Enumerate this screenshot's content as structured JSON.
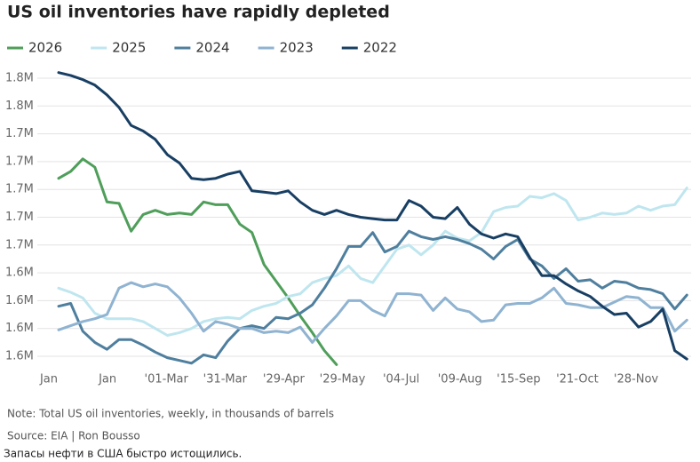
{
  "chart_data": {
    "type": "line",
    "title": "US oil inventories have rapidly depleted",
    "note": "Note: Total US oil inventories, weekly, in thousands of barrels",
    "source": "Source: EIA | Ron Bousso",
    "caption": "Запасы нефти в США быстро истощились.",
    "categories": [
      "Jan",
      null,
      null,
      null,
      null,
      "Jan",
      null,
      null,
      null,
      null,
      "'01-Mar",
      null,
      null,
      null,
      null,
      "'31-Mar",
      null,
      null,
      null,
      null,
      "'29-Apr",
      null,
      null,
      null,
      null,
      "'29-May",
      null,
      null,
      null,
      null,
      "'04-Jul",
      null,
      null,
      null,
      null,
      "'09-Aug",
      null,
      null,
      null,
      null,
      "'15-Sep",
      null,
      null,
      null,
      null,
      "'21-Oct",
      null,
      null,
      null,
      null,
      "'28-Nov",
      null,
      null
    ],
    "ylim": [
      1.57,
      1.79
    ],
    "yticks": [
      {
        "value": 1.58,
        "label": "1.6M"
      },
      {
        "value": 1.6,
        "label": "1.6M"
      },
      {
        "value": 1.62,
        "label": "1.6M"
      },
      {
        "value": 1.64,
        "label": "1.6M"
      },
      {
        "value": 1.66,
        "label": "1.7M"
      },
      {
        "value": 1.68,
        "label": "1.7M"
      },
      {
        "value": 1.7,
        "label": "1.7M"
      },
      {
        "value": 1.72,
        "label": "1.7M"
      },
      {
        "value": 1.74,
        "label": "1.7M"
      },
      {
        "value": 1.76,
        "label": "1.8M"
      },
      {
        "value": 1.78,
        "label": "1.8M"
      }
    ],
    "grid": true,
    "legend": "top",
    "series": [
      {
        "name": "2026",
        "color": "#4f9e5a",
        "values": [
          1.708,
          1.713,
          1.722,
          1.716,
          1.691,
          1.69,
          1.67,
          1.682,
          1.685,
          1.682,
          1.683,
          1.682,
          1.691,
          1.689,
          1.689,
          1.675,
          1.669,
          1.646,
          1.634,
          1.622,
          1.609,
          1.597,
          1.584,
          1.574,
          null,
          null,
          null,
          null,
          null,
          null,
          null,
          null,
          null,
          null,
          null,
          null,
          null,
          null,
          null,
          null,
          null,
          null,
          null,
          null,
          null,
          null,
          null,
          null,
          null,
          null,
          null,
          null,
          null
        ]
      },
      {
        "name": "2025",
        "color": "#bfe6ef",
        "values": [
          1.629,
          1.626,
          1.622,
          1.611,
          1.607,
          1.607,
          1.607,
          1.605,
          1.6,
          1.595,
          1.597,
          1.6,
          1.605,
          1.607,
          1.608,
          1.607,
          1.613,
          1.616,
          1.618,
          1.623,
          1.625,
          1.633,
          1.636,
          1.638,
          1.645,
          1.636,
          1.633,
          1.645,
          1.657,
          1.66,
          1.653,
          1.66,
          1.67,
          1.665,
          1.663,
          1.669,
          1.684,
          1.687,
          1.688,
          1.695,
          1.694,
          1.697,
          1.692,
          1.678,
          1.68,
          1.683,
          1.682,
          1.683,
          1.688,
          1.685,
          1.688,
          1.689,
          1.701
        ]
      },
      {
        "name": "2024",
        "color": "#4f7f9e",
        "values": [
          1.616,
          1.618,
          1.598,
          1.59,
          1.585,
          1.592,
          1.592,
          1.588,
          1.583,
          1.579,
          1.577,
          1.575,
          1.581,
          1.579,
          1.591,
          1.6,
          1.602,
          1.6,
          1.608,
          1.607,
          1.611,
          1.617,
          1.629,
          1.643,
          1.659,
          1.659,
          1.669,
          1.655,
          1.659,
          1.67,
          1.666,
          1.664,
          1.666,
          1.664,
          1.661,
          1.657,
          1.65,
          1.659,
          1.664,
          1.65,
          1.645,
          1.636,
          1.643,
          1.634,
          1.635,
          1.629,
          1.634,
          1.633,
          1.629,
          1.628,
          1.625,
          1.614,
          1.624
        ]
      },
      {
        "name": "2023",
        "color": "#8fb3d1",
        "values": [
          1.599,
          1.602,
          1.605,
          1.607,
          1.61,
          1.629,
          1.633,
          1.63,
          1.632,
          1.63,
          1.622,
          1.611,
          1.598,
          1.605,
          1.603,
          1.6,
          1.6,
          1.597,
          1.598,
          1.597,
          1.601,
          1.59,
          1.6,
          1.609,
          1.62,
          1.62,
          1.613,
          1.609,
          1.625,
          1.625,
          1.624,
          1.613,
          1.622,
          1.614,
          1.612,
          1.605,
          1.606,
          1.617,
          1.618,
          1.618,
          1.622,
          1.629,
          1.618,
          1.617,
          1.615,
          1.615,
          1.619,
          1.623,
          1.622,
          1.615,
          1.615,
          1.598,
          1.606
        ]
      },
      {
        "name": "2022",
        "color": "#183f63",
        "values": [
          1.784,
          1.782,
          1.779,
          1.775,
          1.768,
          1.759,
          1.746,
          1.742,
          1.736,
          1.725,
          1.719,
          1.708,
          1.707,
          1.708,
          1.711,
          1.713,
          1.699,
          1.698,
          1.697,
          1.699,
          1.691,
          1.685,
          1.682,
          1.685,
          1.682,
          1.68,
          1.679,
          1.678,
          1.678,
          1.692,
          1.688,
          1.68,
          1.679,
          1.687,
          1.675,
          1.668,
          1.665,
          1.668,
          1.666,
          1.651,
          1.638,
          1.638,
          1.632,
          1.627,
          1.623,
          1.616,
          1.61,
          1.611,
          1.601,
          1.605,
          1.614,
          1.584,
          1.578
        ]
      }
    ]
  }
}
